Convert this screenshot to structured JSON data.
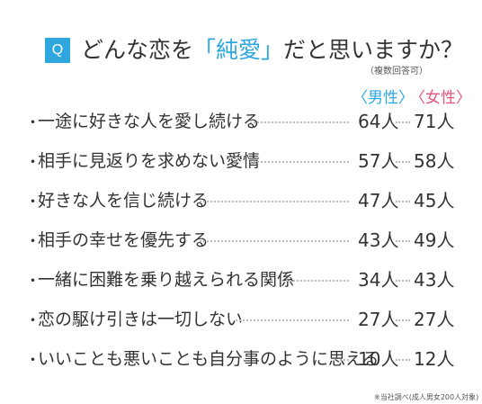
{
  "question_badge": "Q",
  "title": {
    "before": "どんな恋を",
    "highlight": "「純愛」",
    "after": "だと思いますか？"
  },
  "subnote": "（複数回答可）",
  "columns": {
    "male": "〈男性〉",
    "female": "〈女性〉"
  },
  "colors": {
    "accent_blue": "#2ea7e0",
    "accent_pink": "#e5567a",
    "text": "#333333"
  },
  "rows": [
    {
      "bullet": "・",
      "label": "一途に好きな人を愛し続ける",
      "male": "64人",
      "female": "71人"
    },
    {
      "bullet": "・",
      "label": "相手に見返りを求めない愛情",
      "male": "57人",
      "female": "58人"
    },
    {
      "bullet": "・",
      "label": "好きな人を信じ続ける",
      "male": "47人",
      "female": "45人"
    },
    {
      "bullet": "・",
      "label": "相手の幸せを優先する",
      "male": "43人",
      "female": "49人"
    },
    {
      "bullet": "・",
      "label": "一緒に困難を乗り越えられる関係",
      "male": "34人",
      "female": "43人"
    },
    {
      "bullet": "・",
      "label": "恋の駆け引きは一切しない",
      "male": "27人",
      "female": "27人"
    },
    {
      "bullet": "・",
      "label": "いいことも悪いことも自分事のように思える",
      "male": "10人",
      "female": "12人"
    }
  ],
  "footnote": "※当社調べ(成人男女200人対象)"
}
